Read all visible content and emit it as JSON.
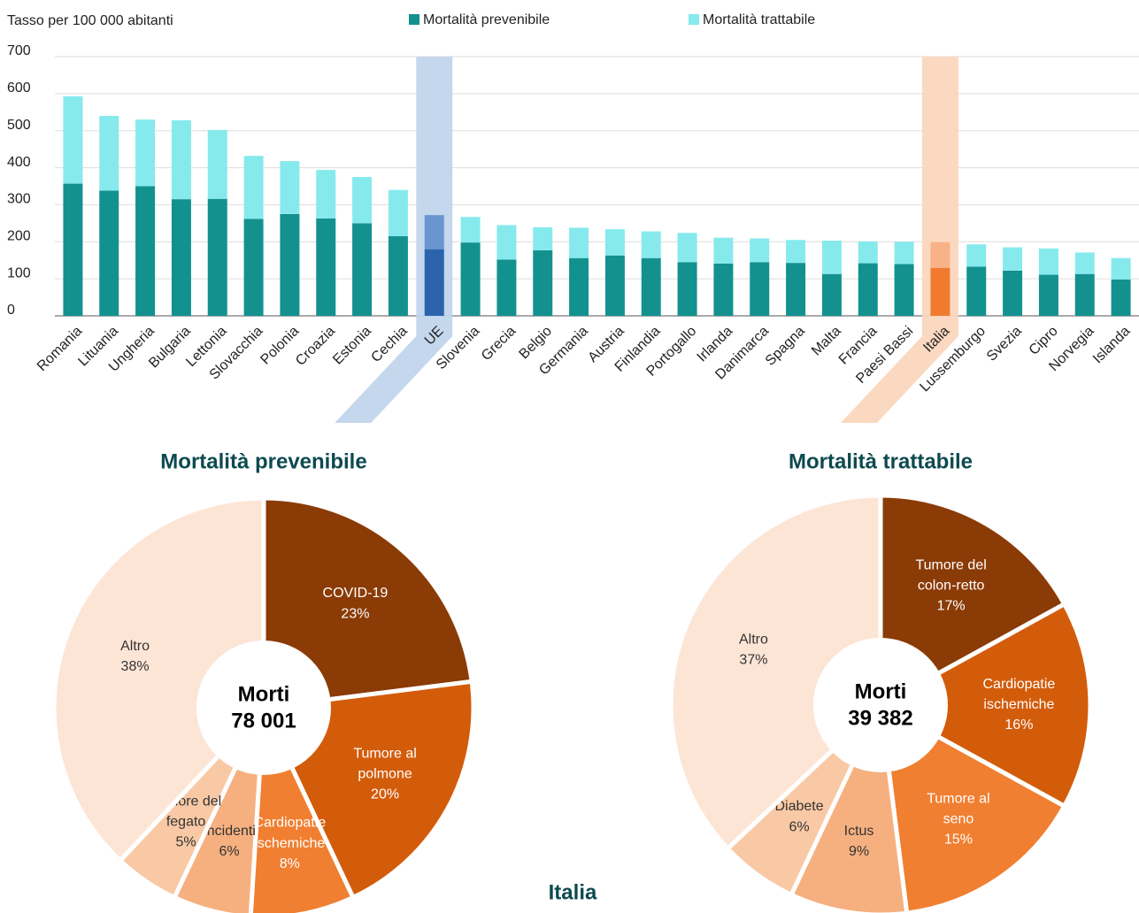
{
  "chart_data": [
    {
      "type": "bar",
      "stacked": true,
      "ylabel": "Tasso per 100 000 abitanti",
      "categories": [
        "Romania",
        "Lituania",
        "Ungheria",
        "Bulgaria",
        "Lettonia",
        "Slovacchia",
        "Polonia",
        "Croazia",
        "Estonia",
        "Cechia",
        "UE",
        "Slovenia",
        "Grecia",
        "Belgio",
        "Germania",
        "Austria",
        "Finlandia",
        "Portogallo",
        "Irlanda",
        "Danimarca",
        "Spagna",
        "Malta",
        "Francia",
        "Paesi Bassi",
        "Italia",
        "Lussemburgo",
        "Svezia",
        "Cipro",
        "Norvegia",
        "Islanda"
      ],
      "series": [
        {
          "name": "Mortalità prevenibile",
          "color": "#13918f",
          "values": [
            357,
            338,
            350,
            315,
            316,
            262,
            275,
            263,
            250,
            215,
            180,
            198,
            152,
            177,
            156,
            163,
            156,
            145,
            141,
            145,
            143,
            113,
            142,
            140,
            129,
            133,
            122,
            111,
            113,
            98
          ]
        },
        {
          "name": "Mortalità trattabile",
          "color": "#86eaed",
          "values": [
            236,
            202,
            180,
            213,
            186,
            170,
            143,
            131,
            125,
            125,
            92,
            69,
            93,
            62,
            82,
            71,
            72,
            79,
            70,
            64,
            62,
            90,
            59,
            60,
            70,
            60,
            63,
            71,
            58,
            58
          ]
        }
      ],
      "highlights": [
        {
          "index": 10,
          "colors": [
            "#2b63ad",
            "#6a96cf"
          ],
          "band_color": "#c2d5ec"
        },
        {
          "index": 24,
          "colors": [
            "#f07b2e",
            "#f9b287"
          ],
          "band_color": "#fbd7bd"
        }
      ],
      "ylim": [
        0,
        700
      ],
      "yticks": [
        0,
        100,
        200,
        300,
        400,
        500,
        600,
        700
      ],
      "grid": true,
      "legend": "top"
    },
    {
      "type": "pie",
      "title": "Mortalità prevenibile",
      "donut": true,
      "center_title": "Morti",
      "center_value": "78 001",
      "categories": [
        "COVID-19",
        "Tumore al\npolmone",
        "Cardiopatie\nischemiche",
        "Incidenti",
        "Tumore del\nfegato",
        "Altro"
      ],
      "values": [
        23,
        20,
        8,
        6,
        5,
        38
      ],
      "value_labels": [
        "23%",
        "20%",
        "8%",
        "6%",
        "5%",
        "38%"
      ],
      "colors": [
        "#8b3b06",
        "#d35c0b",
        "#f07f31",
        "#f6b07f",
        "#f9c9a5",
        "#fde5d6"
      ]
    },
    {
      "type": "pie",
      "title": "Mortalità trattabile",
      "donut": true,
      "center_title": "Morti",
      "center_value": "39 382",
      "categories": [
        "Tumore del\ncolon-retto",
        "Cardiopatie\nischemiche",
        "Tumore al\nseno",
        "Ictus",
        "Diabete",
        "Altro"
      ],
      "values": [
        17,
        16,
        15,
        9,
        6,
        37
      ],
      "value_labels": [
        "17%",
        "16%",
        "15%",
        "9%",
        "6%",
        "37%"
      ],
      "colors": [
        "#8b3b06",
        "#d35c0b",
        "#f07f31",
        "#f6b07f",
        "#f9c9a5",
        "#fde5d6"
      ]
    }
  ],
  "footer": "Italia"
}
